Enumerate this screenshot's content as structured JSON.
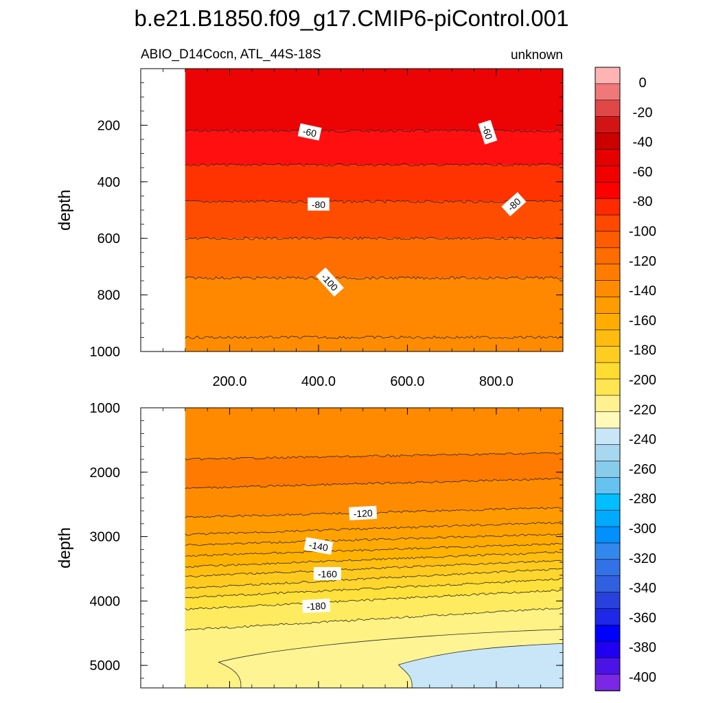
{
  "chart_data": {
    "type": "heatmap",
    "title": "b.e21.B1850.f09_g17.CMIP6-piControl.001",
    "subtitle_left": "ABIO_D14Cocn, ATL_44S-18S",
    "subtitle_right": "unknown",
    "x_range": [
      0,
      950
    ],
    "data_x_start": 100,
    "panels": [
      {
        "name": "upper",
        "ylabel": "depth",
        "ylim": [
          0,
          1000
        ],
        "yticks": [
          "200",
          "400",
          "600",
          "800",
          "1000"
        ],
        "xticks": [
          "200.0",
          "400.0",
          "600.0",
          "800.0"
        ],
        "bands": [
          {
            "from_depth": 0,
            "to_depth": 220,
            "color": "#EC0404"
          },
          {
            "from_depth": 220,
            "to_depth": 340,
            "color": "#FF0F0F"
          },
          {
            "from_depth": 340,
            "to_depth": 470,
            "color": "#FF3300"
          },
          {
            "from_depth": 470,
            "to_depth": 600,
            "color": "#FF4D00"
          },
          {
            "from_depth": 600,
            "to_depth": 740,
            "color": "#FF6E00"
          },
          {
            "from_depth": 740,
            "to_depth": 950,
            "color": "#FF8800"
          },
          {
            "from_depth": 950,
            "to_depth": 1000,
            "color": "#FF8B00"
          }
        ],
        "contour_depths": [
          220,
          340,
          470,
          600,
          740,
          950
        ],
        "labels": [
          {
            "text": "-60",
            "x": 380,
            "depth": 225,
            "angle": 12
          },
          {
            "text": "-60",
            "x": 780,
            "depth": 225,
            "angle": 72
          },
          {
            "text": "-80",
            "x": 400,
            "depth": 480,
            "angle": 0
          },
          {
            "text": "-80",
            "x": 840,
            "depth": 480,
            "angle": -42
          },
          {
            "text": "-100",
            "x": 425,
            "depth": 755,
            "angle": 48
          }
        ]
      },
      {
        "name": "lower",
        "ylabel": "depth",
        "ylim": [
          1000,
          5350
        ],
        "yticks": [
          "1000",
          "2000",
          "3000",
          "4000",
          "5000"
        ],
        "contour_levels_left": [
          1800,
          2250,
          2700,
          2970,
          3130,
          3300,
          3470,
          3620,
          3800,
          3950,
          4130,
          4450
        ],
        "contour_levels_right": [
          1700,
          2100,
          2550,
          2780,
          2960,
          3110,
          3240,
          3370,
          3500,
          3660,
          3830,
          4110
        ],
        "band_colors": [
          "#FF8A00",
          "#FF7A00",
          "#FF8C00",
          "#FF9A00",
          "#FFA200",
          "#FFAA00",
          "#FFB300",
          "#FFBE10",
          "#FFCA1E",
          "#FFD52E",
          "#FFE13B",
          "#FFEB60",
          "#FFF284",
          "#FFF494"
        ],
        "labels": [
          {
            "text": "-120",
            "x": 500,
            "depth": 2640,
            "angle": -3
          },
          {
            "text": "-140",
            "x": 400,
            "depth": 3150,
            "angle": 10
          },
          {
            "text": "-160",
            "x": 420,
            "depth": 3580,
            "angle": 0
          },
          {
            "text": "-180",
            "x": 395,
            "depth": 4080,
            "angle": -3
          }
        ]
      }
    ],
    "colorbar": {
      "labels": [
        "0",
        "-20",
        "-40",
        "-60",
        "-80",
        "-100",
        "-120",
        "-140",
        "-160",
        "-180",
        "-200",
        "-220",
        "-240",
        "-260",
        "-280",
        "-300",
        "-320",
        "-340",
        "-360",
        "-380",
        "-400"
      ],
      "colors": [
        "#FFB4B4",
        "#F07878",
        "#E04848",
        "#D21414",
        "#CD0000",
        "#E40000",
        "#F10000",
        "#FF0000",
        "#FF2A00",
        "#FF4800",
        "#FF5C00",
        "#FF6C00",
        "#FF7C00",
        "#FF8C00",
        "#FF9C00",
        "#FFAC00",
        "#FFBC10",
        "#FFCC20",
        "#FFDC30",
        "#FFE650",
        "#FFF090",
        "#FFFAB8",
        "#C8E6F8",
        "#A8D8F0",
        "#88CCEC",
        "#66C2F0",
        "#00BEFF",
        "#00AAFF",
        "#0090FF",
        "#3388EE",
        "#3372E6",
        "#3060E0",
        "#2840DC",
        "#1E28E6",
        "#0000FF",
        "#2000F0",
        "#4A14E6",
        "#7A28E6"
      ]
    }
  }
}
